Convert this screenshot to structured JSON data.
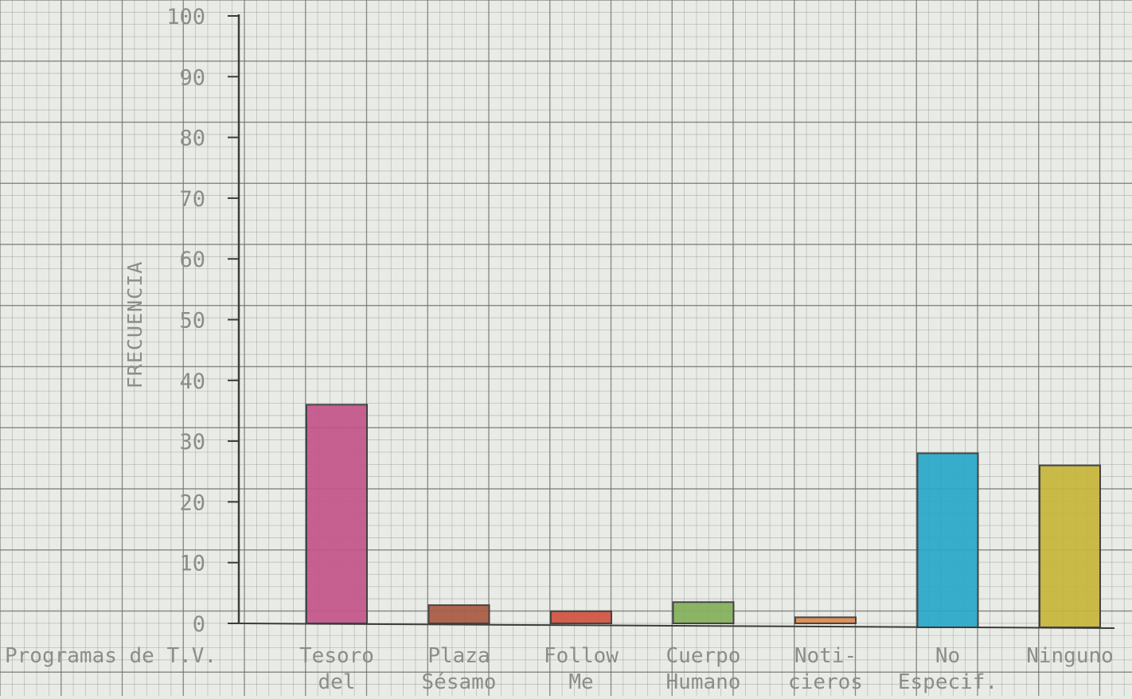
{
  "chart_data": {
    "type": "bar",
    "title": "",
    "xlabel": "Programas de T.V.",
    "ylabel": "FRECUENCIA",
    "ylim": [
      0,
      100
    ],
    "yticks": [
      "0",
      "10",
      "20",
      "30",
      "40",
      "50",
      "60",
      "70",
      "80",
      "90",
      "100"
    ],
    "categories": [
      [
        "Tesoro",
        "del"
      ],
      [
        "Plaza",
        "Sésamo"
      ],
      [
        "Follow",
        "Me"
      ],
      [
        "Cuerpo",
        "Humano"
      ],
      [
        "Noti-",
        "cieros"
      ],
      [
        "No",
        "Especif."
      ],
      [
        "Ninguno"
      ]
    ],
    "values": [
      36,
      3,
      2,
      3.5,
      1,
      28,
      26
    ],
    "colors": [
      "#c4558a",
      "#a95a44",
      "#d4523f",
      "#84b05a",
      "#dc8a4e",
      "#29a7c9",
      "#c7b53a"
    ],
    "grid": true,
    "legend": "none"
  }
}
